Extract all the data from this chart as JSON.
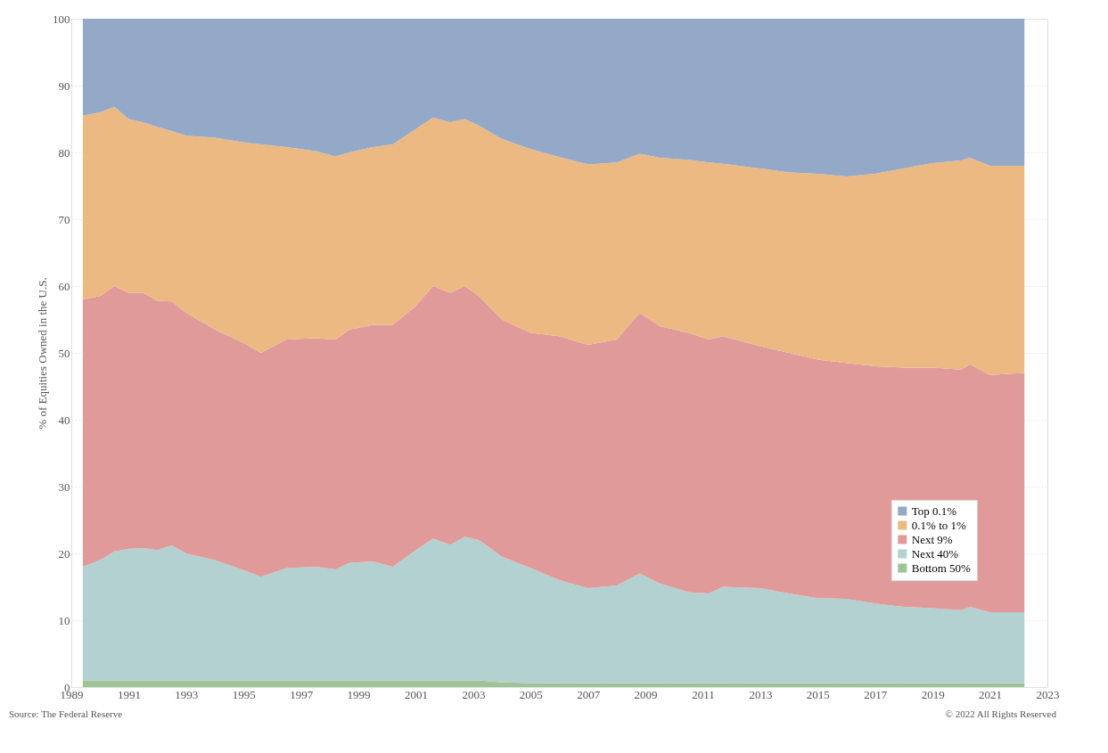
{
  "chart_data": {
    "type": "area",
    "stacked": true,
    "ylabel": "% of Equities Owned in the U.S.",
    "x": [
      1989.4,
      1990,
      1990.5,
      1991,
      1991.5,
      1992,
      1992.5,
      1993,
      1994,
      1995,
      1995.6,
      1996.5,
      1997.5,
      1998.2,
      1998.7,
      1999.5,
      2000.2,
      2001,
      2001.6,
      2002.2,
      2002.7,
      2003.2,
      2004,
      2005,
      2006,
      2007,
      2008,
      2008.8,
      2009.5,
      2010.5,
      2011.2,
      2011.7,
      2013,
      2014,
      2015,
      2016,
      2017,
      2018,
      2019,
      2020,
      2020.3,
      2021,
      2022.2
    ],
    "series": [
      {
        "name": "Bottom 50%",
        "color": "#9dc495",
        "values": [
          1.0,
          1.0,
          1.0,
          1.0,
          1.0,
          1.0,
          1.0,
          1.0,
          1.0,
          1.0,
          1.0,
          1.0,
          1.0,
          1.0,
          1.0,
          1.0,
          1.0,
          1.0,
          1.0,
          1.0,
          1.0,
          1.0,
          0.7,
          0.6,
          0.6,
          0.6,
          0.6,
          0.6,
          0.6,
          0.6,
          0.6,
          0.6,
          0.6,
          0.6,
          0.6,
          0.6,
          0.6,
          0.6,
          0.6,
          0.6,
          0.6,
          0.6,
          0.6
        ]
      },
      {
        "name": "Next 40%",
        "color": "#b3d1d0",
        "values": [
          17.0,
          18.0,
          19.3,
          19.7,
          19.8,
          19.5,
          20.2,
          19.0,
          18.0,
          16.5,
          15.5,
          16.8,
          17.0,
          16.6,
          17.6,
          17.8,
          17.0,
          19.5,
          21.2,
          20.3,
          21.5,
          21.0,
          18.8,
          17.2,
          15.4,
          14.2,
          14.6,
          16.4,
          14.9,
          13.6,
          13.4,
          14.4,
          14.2,
          13.4,
          12.7,
          12.6,
          11.9,
          11.4,
          11.2,
          10.9,
          11.4,
          10.6,
          10.6
        ]
      },
      {
        "name": "Next 9%",
        "color": "#e09a9a",
        "values": [
          40.0,
          39.5,
          39.7,
          38.3,
          38.2,
          37.3,
          36.5,
          36.0,
          34.5,
          34.0,
          33.5,
          34.2,
          34.2,
          34.4,
          34.9,
          35.4,
          36.2,
          36.5,
          37.8,
          37.7,
          37.5,
          36.5,
          35.5,
          35.2,
          36.5,
          36.4,
          36.8,
          39.0,
          38.5,
          38.8,
          38.0,
          37.5,
          36.2,
          36.0,
          35.7,
          35.3,
          35.5,
          35.8,
          36.0,
          36.0,
          36.3,
          35.5,
          35.8
        ]
      },
      {
        "name": "0.1% to 1%",
        "color": "#ecb983",
        "values": [
          27.5,
          27.5,
          26.8,
          26.0,
          25.5,
          26.0,
          25.5,
          26.5,
          28.7,
          30.0,
          31.2,
          28.8,
          28.0,
          27.4,
          26.5,
          26.6,
          27.0,
          26.5,
          25.2,
          25.5,
          25.0,
          25.5,
          27.0,
          27.5,
          26.8,
          27.0,
          26.5,
          23.8,
          25.2,
          25.9,
          26.5,
          25.8,
          26.6,
          27.0,
          27.8,
          27.9,
          28.8,
          29.8,
          30.6,
          31.3,
          30.9,
          31.3,
          31.0
        ]
      },
      {
        "name": "Top 0.1%",
        "color": "#94a9c7",
        "values": [
          14.5,
          14.0,
          13.2,
          15.0,
          15.5,
          16.2,
          16.8,
          17.5,
          17.8,
          18.5,
          18.8,
          19.2,
          19.8,
          20.6,
          20.0,
          19.2,
          18.8,
          16.5,
          14.8,
          15.5,
          15.0,
          16.0,
          18.0,
          19.5,
          20.7,
          21.8,
          21.5,
          20.2,
          20.8,
          21.1,
          21.5,
          21.7,
          22.4,
          23.0,
          23.2,
          23.6,
          23.2,
          22.4,
          21.6,
          21.2,
          20.8,
          22.0,
          22.0
        ]
      }
    ],
    "xlim": [
      1989,
      2023
    ],
    "xticks": [
      1989,
      1991,
      1993,
      1995,
      1997,
      1999,
      2001,
      2003,
      2005,
      2007,
      2009,
      2011,
      2013,
      2015,
      2017,
      2019,
      2021,
      2023
    ],
    "ylim": [
      0,
      100
    ],
    "yticks": [
      0,
      10,
      20,
      30,
      40,
      50,
      60,
      70,
      80,
      90,
      100
    ],
    "grid": "y",
    "legend": "bottom right",
    "annotations": [
      "Source: The Federal Reserve",
      "© 2022 All Rights Reserved"
    ]
  }
}
